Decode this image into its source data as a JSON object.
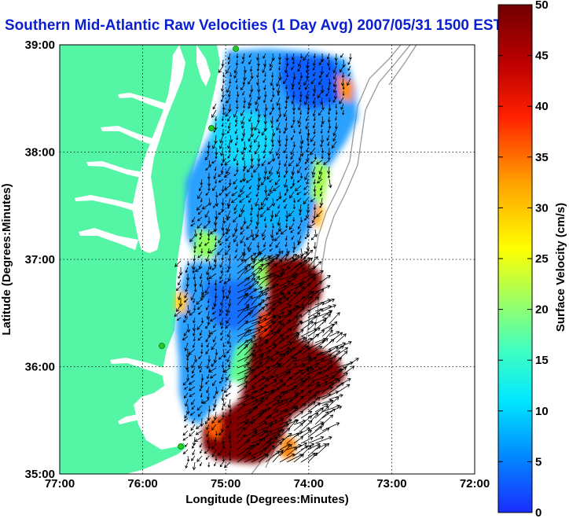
{
  "title": "Southern Mid-Atlantic Raw Velocities (1 Day Avg) 2007/05/31 1500 EST",
  "map": {
    "xlabel": "Longitude (Degrees:Minutes)",
    "ylabel": "Latitude (Degrees:Minutes)",
    "lon_ticks": [
      "77:00",
      "76:00",
      "75:00",
      "74:00",
      "73:00",
      "72:00"
    ],
    "lat_ticks": [
      "39:00",
      "38:00",
      "37:00",
      "36:00",
      "35:00"
    ],
    "xlim": [
      -77,
      -72
    ],
    "ylim": [
      35,
      39
    ],
    "grid": true
  },
  "colorbar": {
    "label": "Surface Velocity (cm/s)",
    "ticks": [
      "0",
      "5",
      "10",
      "15",
      "20",
      "25",
      "30",
      "35",
      "40",
      "45",
      "50"
    ],
    "range": [
      0,
      50
    ],
    "colors": [
      "#1a2cff",
      "#0090ff",
      "#00e8ff",
      "#40ffc0",
      "#a0ff60",
      "#ffff00",
      "#ffa000",
      "#ff2000",
      "#c00000",
      "#7a0000"
    ]
  },
  "colors": {
    "land": "#55f5a6",
    "water": "#ffffff",
    "title": "#0a1fd0",
    "arrows": "#000000",
    "stations": "#22cc22"
  }
}
